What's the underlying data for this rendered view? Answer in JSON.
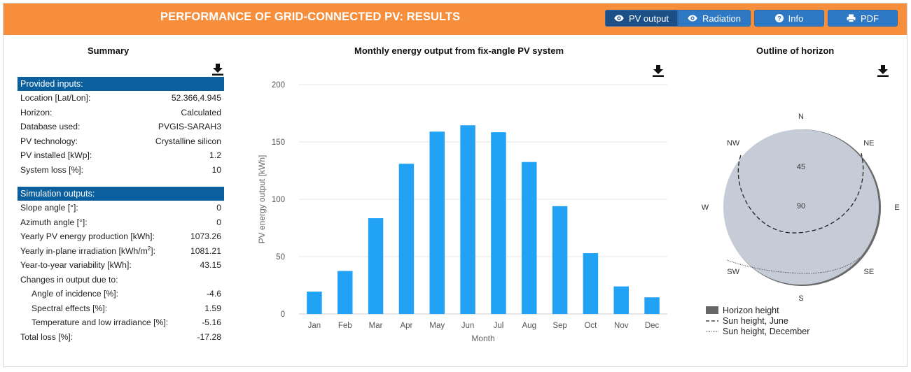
{
  "header": {
    "title": "PERFORMANCE OF GRID-CONNECTED PV: RESULTS",
    "buttons": {
      "pv_output": "PV output",
      "radiation": "Radiation",
      "info": "Info",
      "pdf": "PDF"
    }
  },
  "summary": {
    "title": "Summary",
    "inputs_header": "Provided inputs:",
    "inputs": [
      {
        "label": "Location [Lat/Lon]:",
        "value": "52.366,4.945"
      },
      {
        "label": "Horizon:",
        "value": "Calculated"
      },
      {
        "label": "Database used:",
        "value": "PVGIS-SARAH3"
      },
      {
        "label": "PV technology:",
        "value": "Crystalline silicon"
      },
      {
        "label": "PV installed [kWp]:",
        "value": "1.2"
      },
      {
        "label": "System loss [%]:",
        "value": "10"
      }
    ],
    "outputs_header": "Simulation outputs:",
    "outputs": [
      {
        "label": "Slope angle [°]:",
        "value": "0"
      },
      {
        "label": "Azimuth angle [°]:",
        "value": "0"
      },
      {
        "label": "Yearly PV energy production [kWh]:",
        "value": "1073.26"
      },
      {
        "label": "Yearly in-plane irradiation [kWh/m",
        "label_sup": "2",
        "label_tail": "]:",
        "value": "1081.21"
      },
      {
        "label": "Year-to-year variability [kWh]:",
        "value": "43.15"
      },
      {
        "label": "Changes in output due to:",
        "value": ""
      },
      {
        "label": "Angle of incidence [%]:",
        "value": "-4.6",
        "indent": true
      },
      {
        "label": "Spectral effects [%]:",
        "value": "1.59",
        "indent": true
      },
      {
        "label": "Temperature and low irradiance [%]:",
        "value": "-5.16",
        "indent": true
      },
      {
        "label": "Total loss [%]:",
        "value": "-17.28"
      }
    ]
  },
  "chart_data": {
    "type": "bar",
    "title": "Monthly energy output from fix-angle PV system",
    "xlabel": "Month",
    "ylabel": "PV energy output [kWh]",
    "categories": [
      "Jan",
      "Feb",
      "Mar",
      "Apr",
      "May",
      "Jun",
      "Jul",
      "Aug",
      "Sep",
      "Oct",
      "Nov",
      "Dec"
    ],
    "values": [
      19.5,
      37.5,
      83.5,
      131,
      159,
      164.5,
      158.5,
      132.5,
      94,
      53,
      24,
      14.5
    ],
    "ylim": [
      0,
      200
    ],
    "yticks": [
      0,
      50,
      100,
      150,
      200
    ],
    "grid": true,
    "bar_color": "#22a2f5"
  },
  "horizon": {
    "title": "Outline of horizon",
    "directions": [
      "N",
      "NE",
      "E",
      "SE",
      "S",
      "SW",
      "W",
      "NW"
    ],
    "elevation_labels": [
      "45",
      "90"
    ],
    "legend": [
      {
        "label": "Horizon height"
      },
      {
        "label": "Sun height, June"
      },
      {
        "label": "Sun height, December"
      }
    ],
    "fill_color": "#c5ccd8",
    "horizon_color": "#6a6a6a"
  }
}
